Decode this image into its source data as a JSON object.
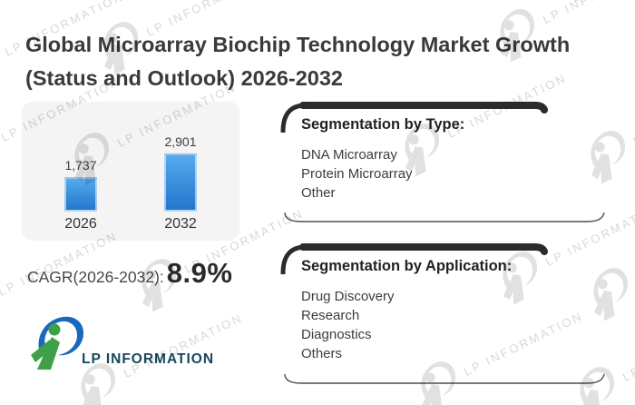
{
  "header": {
    "title_line1": "Global Microarray Biochip Technology Market Growth",
    "title_line2": "(Status and Outlook) 2026-2032"
  },
  "chart_data": {
    "type": "bar",
    "categories": [
      "2026",
      "2032"
    ],
    "values": [
      1737,
      2901
    ],
    "value_labels": [
      "1,737",
      "2,901"
    ],
    "title": "Market size 2026 vs 2032 (bar chart, values labeled above bars)",
    "xlabel": "",
    "ylabel": "",
    "ylim": [
      0,
      2901
    ],
    "grid": false,
    "legend": false,
    "bar_color_top": "#56aaed",
    "bar_color_bottom": "#2277cc",
    "panel_background": "#f4f4f4"
  },
  "cagr": {
    "label": "CAGR(2026-2032):",
    "value": "8.9%"
  },
  "segmentation_type": {
    "title": "Segmentation by Type:",
    "items": [
      "DNA Microarray",
      "Protein Microarray",
      "Other"
    ]
  },
  "segmentation_application": {
    "title": "Segmentation by Application:",
    "items": [
      "Drug Discovery",
      "Research",
      "Diagnostics",
      "Others"
    ]
  },
  "logo": {
    "text": "LP INFORMATION",
    "blue": "#1b69bd",
    "green": "#3fa047",
    "text_color": "#16485c"
  },
  "watermark": {
    "text": "LP INFORMATION",
    "color": "#d8d8d8"
  },
  "border_colors": {
    "thick_top": "#2b2b2b",
    "thin_bottom": "#4d4d4d"
  }
}
